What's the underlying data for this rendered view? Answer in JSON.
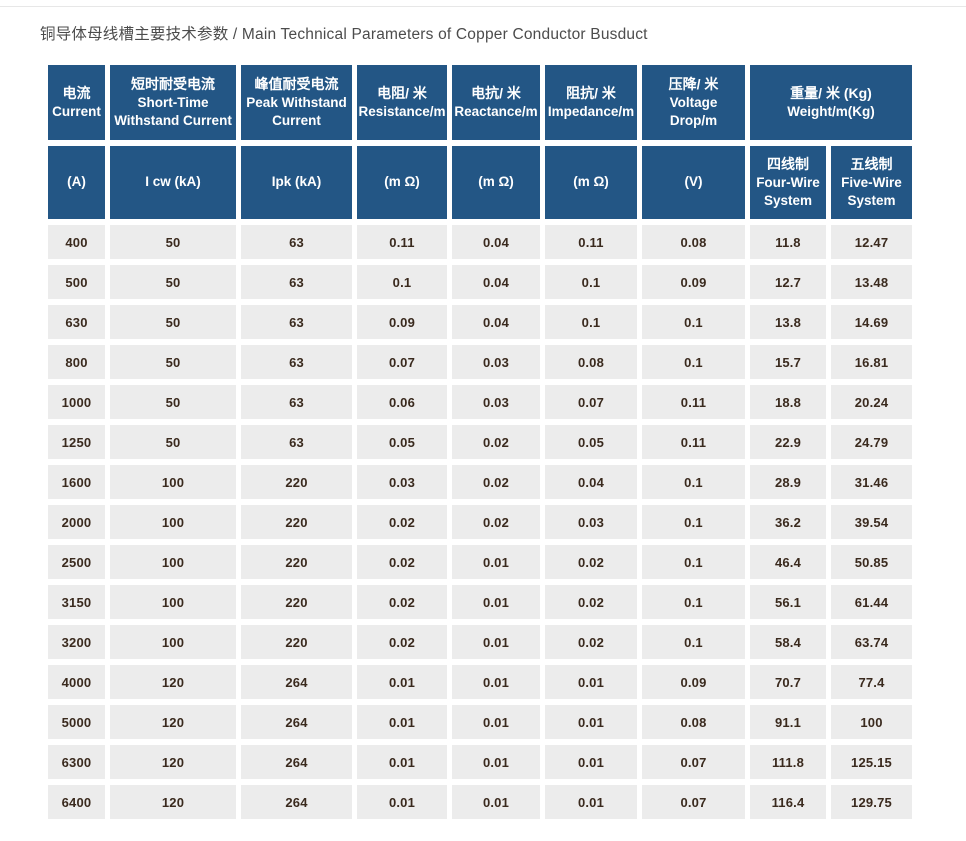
{
  "page": {
    "title": "铜导体母线槽主要技术参数 / Main Technical Parameters of Copper Conductor Busduct"
  },
  "colors": {
    "header_bg": "#235685",
    "row_bg": "#ececec",
    "value_text": "#3a2a1e",
    "title_text": "#4c4c4c"
  },
  "table": {
    "header_top": [
      {
        "zh": "电流",
        "en": "Current",
        "span": 1
      },
      {
        "zh": "短时耐受电流",
        "en": "Short-Time Withstand Current",
        "span": 1
      },
      {
        "zh": "峰值耐受电流",
        "en": "Peak Withstand Current",
        "span": 1
      },
      {
        "zh": "电阻/ 米",
        "en": "Resistance/m",
        "span": 1
      },
      {
        "zh": "电抗/ 米",
        "en": "Reactance/m",
        "span": 1
      },
      {
        "zh": "阻抗/ 米",
        "en": "Impedance/m",
        "span": 1
      },
      {
        "zh": "压降/ 米",
        "en": "Voltage Drop/m",
        "span": 1
      },
      {
        "zh": "重量/ 米 (Kg)",
        "en": "Weight/m(Kg)",
        "span": 2
      }
    ],
    "header_sub": [
      {
        "zh": "",
        "en": "(A)"
      },
      {
        "zh": "",
        "en": "I cw (kA)"
      },
      {
        "zh": "",
        "en": "Ipk (kA)"
      },
      {
        "zh": "",
        "en": "(m Ω)"
      },
      {
        "zh": "",
        "en": "(m Ω)"
      },
      {
        "zh": "",
        "en": "(m Ω)"
      },
      {
        "zh": "",
        "en": "(V)"
      },
      {
        "zh": "四线制",
        "en": "Four-Wire System"
      },
      {
        "zh": "五线制",
        "en": "Five-Wire System"
      }
    ],
    "rows": [
      [
        "400",
        "50",
        "63",
        "0.11",
        "0.04",
        "0.11",
        "0.08",
        "11.8",
        "12.47"
      ],
      [
        "500",
        "50",
        "63",
        "0.1",
        "0.04",
        "0.1",
        "0.09",
        "12.7",
        "13.48"
      ],
      [
        "630",
        "50",
        "63",
        "0.09",
        "0.04",
        "0.1",
        "0.1",
        "13.8",
        "14.69"
      ],
      [
        "800",
        "50",
        "63",
        "0.07",
        "0.03",
        "0.08",
        "0.1",
        "15.7",
        "16.81"
      ],
      [
        "1000",
        "50",
        "63",
        "0.06",
        "0.03",
        "0.07",
        "0.11",
        "18.8",
        "20.24"
      ],
      [
        "1250",
        "50",
        "63",
        "0.05",
        "0.02",
        "0.05",
        "0.11",
        "22.9",
        "24.79"
      ],
      [
        "1600",
        "100",
        "220",
        "0.03",
        "0.02",
        "0.04",
        "0.1",
        "28.9",
        "31.46"
      ],
      [
        "2000",
        "100",
        "220",
        "0.02",
        "0.02",
        "0.03",
        "0.1",
        "36.2",
        "39.54"
      ],
      [
        "2500",
        "100",
        "220",
        "0.02",
        "0.01",
        "0.02",
        "0.1",
        "46.4",
        "50.85"
      ],
      [
        "3150",
        "100",
        "220",
        "0.02",
        "0.01",
        "0.02",
        "0.1",
        "56.1",
        "61.44"
      ],
      [
        "3200",
        "100",
        "220",
        "0.02",
        "0.01",
        "0.02",
        "0.1",
        "58.4",
        "63.74"
      ],
      [
        "4000",
        "120",
        "264",
        "0.01",
        "0.01",
        "0.01",
        "0.09",
        "70.7",
        "77.4"
      ],
      [
        "5000",
        "120",
        "264",
        "0.01",
        "0.01",
        "0.01",
        "0.08",
        "91.1",
        "100"
      ],
      [
        "6300",
        "120",
        "264",
        "0.01",
        "0.01",
        "0.01",
        "0.07",
        "111.8",
        "125.15"
      ],
      [
        "6400",
        "120",
        "264",
        "0.01",
        "0.01",
        "0.01",
        "0.07",
        "116.4",
        "129.75"
      ]
    ]
  }
}
